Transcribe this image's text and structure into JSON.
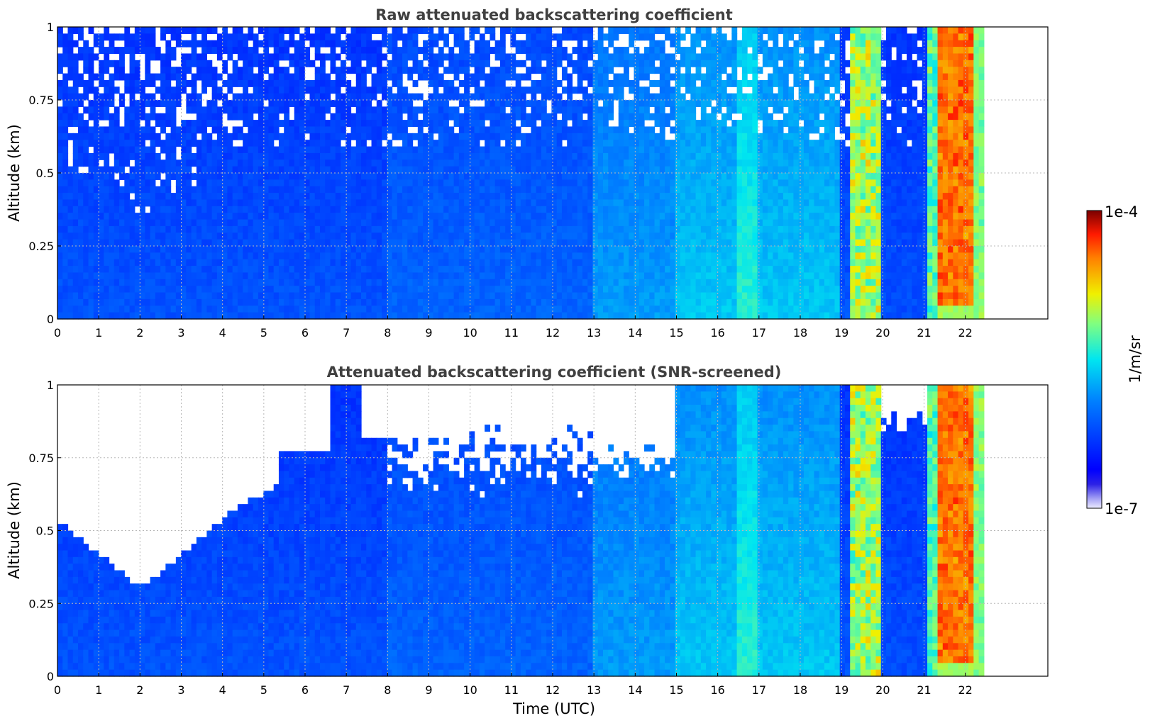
{
  "figure": {
    "colorbar": {
      "label": "1/m/sr",
      "max_label": "1e-4",
      "min_label": "1e-7",
      "scale": "log",
      "range": [
        1e-07,
        0.0001
      ],
      "colormap": "jet"
    }
  },
  "chart_data": [
    {
      "type": "heatmap",
      "title": "Raw attenuated backscattering coefficient",
      "xlabel": "",
      "ylabel": "Altitude (km)",
      "xlim": [
        0,
        24
      ],
      "ylim": [
        0,
        1
      ],
      "x_ticks": [
        "0",
        "1",
        "2",
        "3",
        "4",
        "5",
        "6",
        "7",
        "8",
        "9",
        "10",
        "11",
        "12",
        "13",
        "14",
        "15",
        "16",
        "17",
        "18",
        "19",
        "20",
        "21",
        "22"
      ],
      "y_ticks": [
        "0",
        "0.25",
        "0.5",
        "0.75",
        "1"
      ],
      "grid": true,
      "data_coverage_x": [
        0,
        22.45
      ],
      "color_scale": "log",
      "value_range": [
        1e-07,
        0.0001
      ],
      "screened": false
    },
    {
      "type": "heatmap",
      "title": "Attenuated backscattering coefficient (SNR-screened)",
      "xlabel": "Time (UTC)",
      "ylabel": "Altitude (km)",
      "xlim": [
        0,
        24
      ],
      "ylim": [
        0,
        1
      ],
      "x_ticks": [
        "0",
        "1",
        "2",
        "3",
        "4",
        "5",
        "6",
        "7",
        "8",
        "9",
        "10",
        "11",
        "12",
        "13",
        "14",
        "15",
        "16",
        "17",
        "18",
        "19",
        "20",
        "21",
        "22"
      ],
      "y_ticks": [
        "0",
        "0.25",
        "0.5",
        "0.75",
        "1"
      ],
      "grid": true,
      "data_coverage_x": [
        0,
        22.45
      ],
      "color_scale": "log",
      "value_range": [
        1e-07,
        0.0001
      ],
      "screened": true
    }
  ]
}
